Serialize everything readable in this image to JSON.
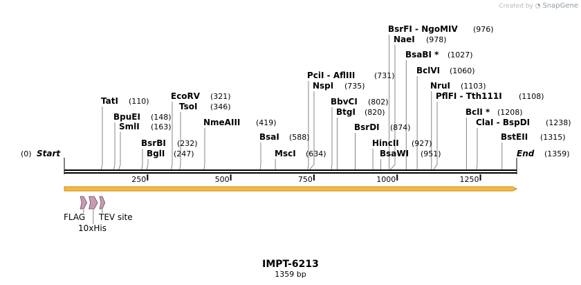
{
  "watermark": {
    "prefix": "Created by",
    "brand": "SnapGene"
  },
  "sequence": {
    "name": "IMPT-6213",
    "length_label": "1359 bp",
    "length": 1359
  },
  "ends": {
    "start_label": "Start",
    "start_pos": "(0)",
    "end_label": "End",
    "end_pos": "(1359)"
  },
  "axis_ticks": [
    250,
    500,
    750,
    1000,
    1250
  ],
  "enzymes": [
    {
      "name": "TatI",
      "site": 110,
      "label": "(110)"
    },
    {
      "name": "BpuEI",
      "site": 148,
      "label": "(148)"
    },
    {
      "name": "SmlI",
      "site": 163,
      "label": "(163)"
    },
    {
      "name": "BsrBI",
      "site": 232,
      "label": "(232)"
    },
    {
      "name": "BglI",
      "site": 247,
      "label": "(247)"
    },
    {
      "name": "EcoRV",
      "site": 321,
      "label": "(321)"
    },
    {
      "name": "TsoI",
      "site": 346,
      "label": "(346)"
    },
    {
      "name": "NmeAIII",
      "site": 419,
      "label": "(419)"
    },
    {
      "name": "BsaI",
      "site": 588,
      "label": "(588)"
    },
    {
      "name": "MscI",
      "site": 634,
      "label": "(634)"
    },
    {
      "name": "PciI  -  AflIII",
      "site": 731,
      "label": "(731)"
    },
    {
      "name": "NspI",
      "site": 735,
      "label": "(735)"
    },
    {
      "name": "BbvCI",
      "site": 802,
      "label": "(802)"
    },
    {
      "name": "BtgI",
      "site": 820,
      "label": "(820)"
    },
    {
      "name": "BsrDI",
      "site": 874,
      "label": "(874)"
    },
    {
      "name": "HincII",
      "site": 927,
      "label": "(927)"
    },
    {
      "name": "BsaWI",
      "site": 951,
      "label": "(951)"
    },
    {
      "name": "BsrFI  -  NgoMIV",
      "site": 976,
      "label": "(976)"
    },
    {
      "name": "NaeI",
      "site": 978,
      "label": "(978)"
    },
    {
      "name": "BsaBI *",
      "site": 1027,
      "label": "(1027)"
    },
    {
      "name": "BclVI",
      "site": 1060,
      "label": "(1060)"
    },
    {
      "name": "NruI",
      "site": 1103,
      "label": "(1103)"
    },
    {
      "name": "PflFI  -  Tth111I",
      "site": 1108,
      "label": "(1108)"
    },
    {
      "name": "BclI *",
      "site": 1208,
      "label": "(1208)"
    },
    {
      "name": "ClaI  -  BspDI",
      "site": 1238,
      "label": "(1238)"
    },
    {
      "name": "BstEII",
      "site": 1315,
      "label": "(1315)"
    }
  ],
  "features": [
    {
      "name": "FLAG",
      "start": 46,
      "end": 70
    },
    {
      "name": "10xHis",
      "start": 72,
      "end": 102
    },
    {
      "name": "TEV site",
      "start": 104,
      "end": 124
    }
  ],
  "colors": {
    "backbone": "#000000",
    "orf_fill": "#f5b942",
    "orf_stroke": "#c88a10",
    "feature_fill": "#c79cb2",
    "feature_stroke": "#6b4a5c",
    "site_line": "#666666"
  }
}
